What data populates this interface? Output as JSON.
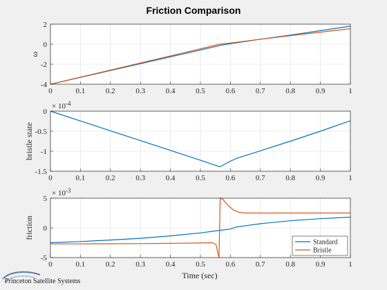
{
  "figure": {
    "title": "Friction Comparison",
    "xlabel": "Time (sec)",
    "logo_text": "Princeton Satellite Systems"
  },
  "colors": {
    "standard": "#0072BD",
    "bristle": "#D95319",
    "grid": "#dcdcdc",
    "axis": "#262626",
    "background": "#f0f0f0",
    "plot_bg": "#ffffff"
  },
  "chart_data": [
    {
      "type": "line",
      "title": "Friction Comparison",
      "xlabel": "",
      "ylabel": "ω",
      "xlim": [
        0,
        1
      ],
      "ylim": [
        -4,
        2
      ],
      "x_ticks": [
        "0",
        "0.1",
        "0.2",
        "0.3",
        "0.4",
        "0.5",
        "0.6",
        "0.7",
        "0.8",
        "0.9",
        "1"
      ],
      "y_ticks": [
        "2",
        "0",
        "-2",
        "-4"
      ],
      "y_tick_values": [
        2,
        0,
        -2,
        -4
      ],
      "exponent_label": "",
      "grid": true,
      "series": [
        {
          "key": "standard",
          "x": [
            0,
            0.57,
            0.6,
            0.7,
            0.8,
            0.9,
            1.0
          ],
          "y": [
            -4.0,
            -0.1,
            0.05,
            0.5,
            0.9,
            1.35,
            1.8
          ]
        },
        {
          "key": "bristle",
          "x": [
            0,
            0.565,
            0.6,
            0.7,
            0.8,
            0.9,
            1.0
          ],
          "y": [
            -4.0,
            0.0,
            0.12,
            0.5,
            0.85,
            1.2,
            1.55
          ]
        }
      ]
    },
    {
      "type": "line",
      "xlabel": "",
      "ylabel": "bristle state",
      "xlim": [
        0,
        1
      ],
      "ylim": [
        -1.5,
        0
      ],
      "x_ticks": [
        "0",
        "0.1",
        "0.2",
        "0.3",
        "0.4",
        "0.5",
        "0.6",
        "0.7",
        "0.8",
        "0.9",
        "1"
      ],
      "y_ticks": [
        "0",
        "-0.5",
        "-1",
        "-1.5"
      ],
      "y_tick_values": [
        0,
        -0.5,
        -1,
        -1.5
      ],
      "exponent_label": "× 10",
      "exponent_power": "-4",
      "grid": true,
      "series": [
        {
          "key": "standard",
          "x": [
            0,
            0.1,
            0.2,
            0.3,
            0.4,
            0.5,
            0.565,
            0.6,
            0.62,
            0.7,
            0.8,
            0.9,
            1.0
          ],
          "y": [
            0,
            -0.245,
            -0.49,
            -0.735,
            -0.98,
            -1.225,
            -1.39,
            -1.25,
            -1.18,
            -0.99,
            -0.75,
            -0.5,
            -0.24
          ]
        }
      ]
    },
    {
      "type": "line",
      "xlabel": "Time (sec)",
      "ylabel": "friction",
      "xlim": [
        0,
        1
      ],
      "ylim": [
        -5,
        5
      ],
      "x_ticks": [
        "0",
        "0.1",
        "0.2",
        "0.3",
        "0.4",
        "0.5",
        "0.6",
        "0.7",
        "0.8",
        "0.9",
        "1"
      ],
      "y_ticks": [
        "5",
        "0",
        "-5"
      ],
      "y_tick_values": [
        5,
        0,
        -5
      ],
      "exponent_label": "× 10",
      "exponent_power": "-3",
      "grid": true,
      "legend": {
        "position": "bottom-right",
        "entries": [
          "Standard",
          "Bristle"
        ]
      },
      "series": [
        {
          "key": "standard",
          "name": "Standard",
          "x": [
            0,
            0.1,
            0.2,
            0.3,
            0.4,
            0.5,
            0.56,
            0.6,
            0.62,
            0.7,
            0.8,
            0.9,
            1.0
          ],
          "y": [
            -2.5,
            -2.3,
            -2.05,
            -1.75,
            -1.35,
            -0.85,
            -0.45,
            -0.2,
            0.15,
            0.7,
            1.2,
            1.55,
            1.8
          ]
        },
        {
          "key": "bristle",
          "name": "Bristle",
          "x": [
            0,
            0.1,
            0.2,
            0.3,
            0.4,
            0.5,
            0.54,
            0.552,
            0.558,
            0.562,
            0.564,
            0.566,
            0.568,
            0.575,
            0.59,
            0.61,
            0.63,
            0.65,
            0.7,
            0.8,
            0.9,
            1.0
          ],
          "y": [
            -2.7,
            -2.7,
            -2.68,
            -2.65,
            -2.6,
            -2.55,
            -2.5,
            -2.8,
            -4.2,
            -5.0,
            0.0,
            5.0,
            5.0,
            4.8,
            3.9,
            3.0,
            2.6,
            2.5,
            2.5,
            2.5,
            2.5,
            2.5
          ]
        }
      ]
    }
  ]
}
